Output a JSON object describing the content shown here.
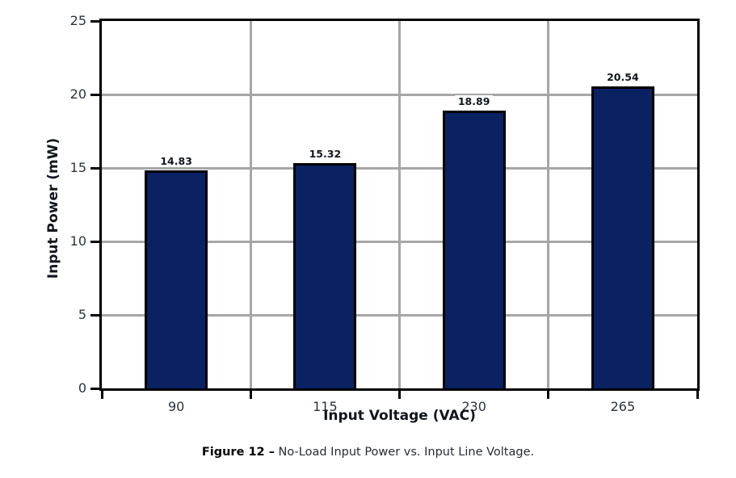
{
  "chart_data": {
    "type": "bar",
    "categories": [
      "90",
      "115",
      "230",
      "265"
    ],
    "values": [
      14.83,
      15.32,
      18.89,
      20.54
    ],
    "value_labels": [
      "14.83",
      "15.32",
      "18.89",
      "20.54"
    ],
    "title": "",
    "xlabel": "Input Voltage (VAC)",
    "ylabel": "Input Power (mW)",
    "ylim": [
      0,
      25
    ],
    "yticks": [
      0,
      5,
      10,
      15,
      20,
      25
    ],
    "ytick_labels": [
      "0",
      "5",
      "10",
      "15",
      "20",
      "25"
    ],
    "grid": {
      "horizontal": true,
      "vertical_at_category_boundaries": true
    },
    "legend": "none",
    "colors": {
      "bar_fill": "#0a2162",
      "bar_border": "#000000",
      "gridline": "#a6a6a6",
      "axis_frame": "#000000"
    }
  },
  "caption": {
    "label": "Figure 12 –",
    "text": " No-Load Input Power vs. Input Line Voltage."
  }
}
